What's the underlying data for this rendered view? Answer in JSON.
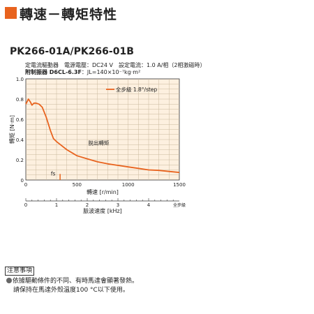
{
  "header": {
    "title": "轉速－轉矩特性",
    "accent": "#e8631e"
  },
  "model": "PK266-01A/PK266-01B",
  "spec": {
    "line1": "定電流驅動器　電源電壓：DC24 V　設定電流：1.0 A/相（2相激磁時）",
    "line2_bold": "附制振器 D6CL-6.3F",
    "line2_rest": "：JL=140×10⁻⁷kg·m²"
  },
  "chart_data": {
    "type": "line",
    "xlabel": "轉速 [r/min]",
    "ylabel": "轉矩 [N·m]",
    "xlim": [
      0,
      1500
    ],
    "ylim": [
      0,
      1.0
    ],
    "xticks": [
      0,
      500,
      1000,
      1500
    ],
    "yticks": [
      0,
      0.2,
      0.4,
      0.6,
      0.8,
      1.0
    ],
    "ytick_labels": [
      "0",
      "0.2",
      "0.4",
      "0.6",
      "0.8",
      "1.0"
    ],
    "grid": true,
    "legend": "top-right",
    "series": [
      {
        "name": "全步級 1.8°/step",
        "color": "#e8631e",
        "x": [
          0,
          25,
          45,
          60,
          80,
          100,
          130,
          160,
          200,
          240,
          270,
          300,
          350,
          400,
          500,
          600,
          700,
          800,
          900,
          1000,
          1100,
          1200,
          1300,
          1400,
          1500
        ],
        "y": [
          0.75,
          0.8,
          0.77,
          0.74,
          0.76,
          0.76,
          0.75,
          0.72,
          0.62,
          0.49,
          0.41,
          0.38,
          0.34,
          0.3,
          0.24,
          0.21,
          0.18,
          0.16,
          0.145,
          0.13,
          0.115,
          0.1,
          0.095,
          0.085,
          0.075
        ]
      }
    ],
    "annotations": [
      {
        "text": "脫出轉矩",
        "x": 610,
        "y": 0.35
      },
      {
        "text": "fs",
        "x": 245,
        "y": 0.045
      }
    ],
    "fs_marker": {
      "x": 335,
      "y": [
        0,
        0.06
      ]
    },
    "secondary_axis": {
      "label": "脈波速度 [kHz]",
      "ticks": [
        0,
        1,
        2,
        3,
        4
      ],
      "max_label": "全步級",
      "khz_per_rpm": 0.003333
    }
  },
  "notes": {
    "title": "注意事項",
    "line1": "依據驅動條件的不同、有時馬達會顯著發熱。",
    "line2": "請保持在馬達外殼溫度100 °C以下使用。"
  }
}
